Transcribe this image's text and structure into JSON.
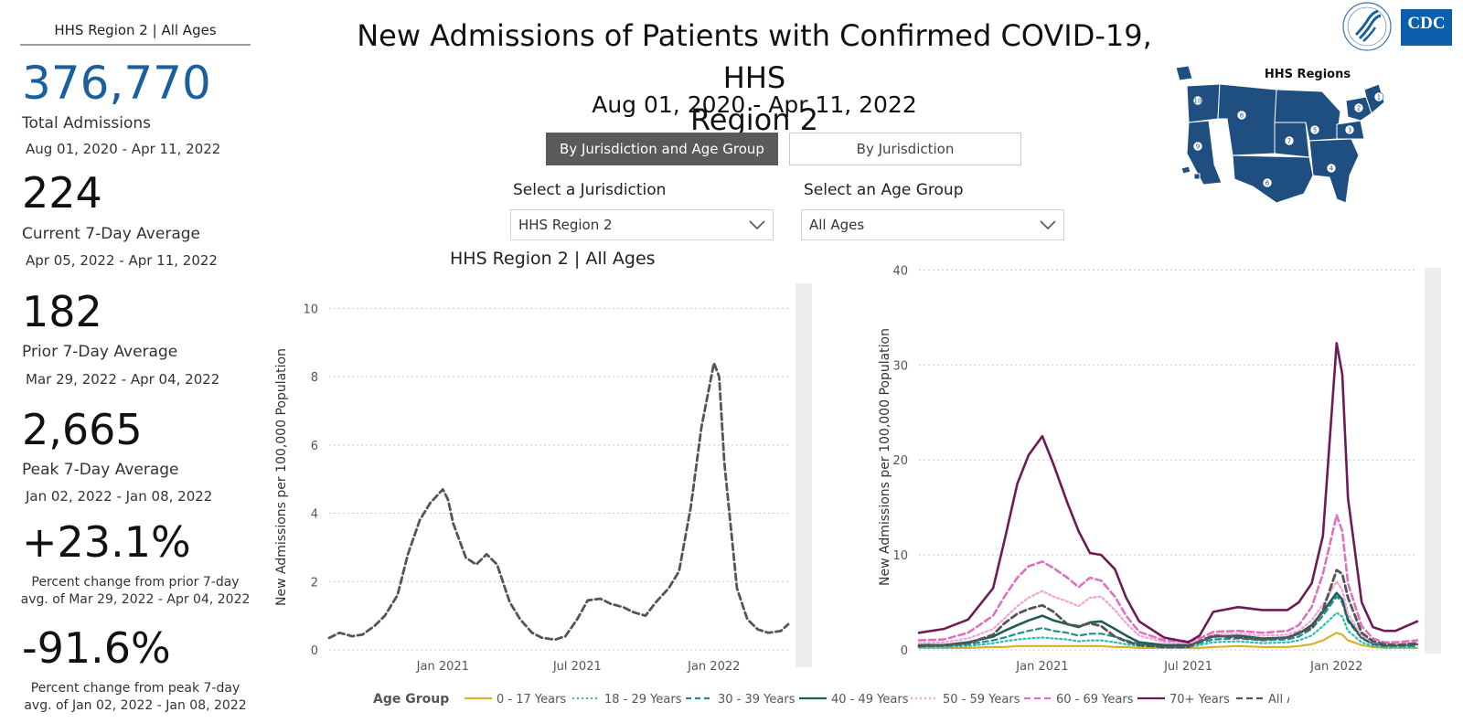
{
  "left_panel": {
    "header": "HHS Region 2 | All Ages",
    "total_admissions": "376,770",
    "total_label": "Total Admissions",
    "total_range": "Aug 01, 2020 - Apr 11, 2022",
    "current_avg": "224",
    "current_label": "Current 7-Day Average",
    "current_range": "Apr 05, 2022 - Apr 11, 2022",
    "prior_avg": "182",
    "prior_label": "Prior 7-Day Average",
    "prior_range": "Mar 29, 2022 - Apr 04, 2022",
    "peak_avg": "2,665",
    "peak_label": "Peak 7-Day Average",
    "peak_range": "Jan 02, 2022 - Jan 08, 2022",
    "pct_change_prior": "+23.1%",
    "pct_change_prior_line1": "Percent change from prior 7-day",
    "pct_change_prior_line2": "avg. of Mar 29, 2022 - Apr 04, 2022",
    "pct_change_peak": "-91.6%",
    "pct_change_peak_line1": "Percent change from peak 7-day",
    "pct_change_peak_line2": "avg. of Jan 02, 2022 - Jan 08, 2022"
  },
  "header": {
    "title_line1": "New Admissions of Patients with Confirmed COVID-19, HHS",
    "title_line2": "Region 2",
    "date_range": "Aug 01, 2020 - Apr 11, 2022"
  },
  "toggle": {
    "by_jurisdiction_age": "By Jurisdiction and Age Group",
    "by_jurisdiction": "By Jurisdiction",
    "active": "By Jurisdiction and Age Group"
  },
  "filters": {
    "jurisdiction_label": "Select a Jurisdiction",
    "jurisdiction_value": "HHS Region 2",
    "age_label": "Select an Age Group",
    "age_value": "All Ages"
  },
  "chart_subtitle": "HHS Region 2 | All Ages",
  "map": {
    "title": "HHS Regions",
    "region_labels": [
      "1",
      "2",
      "3",
      "4",
      "5",
      "6",
      "7",
      "8",
      "9",
      "10"
    ]
  },
  "legend": {
    "title": "Age Group",
    "items": [
      "0 - 17 Years",
      "18 - 29 Years",
      "30 - 39 Years",
      "40 - 49 Years",
      "50 - 59 Years",
      "60 - 69 Years",
      "70+ Years",
      "All Ages"
    ]
  },
  "colors": {
    "brand_blue": "#1a5f9e",
    "cdc_blue": "#0a5eab",
    "map_blue": "#1f4e80",
    "active_button": "#5a5a5a",
    "age_0_17": "#d9b12a",
    "age_18_29": "#2bbfb0",
    "age_30_39": "#1e8f92",
    "age_40_49": "#1f5d57",
    "age_50_59": "#f0a9d7",
    "age_60_69": "#e070c0",
    "age_70_plus": "#6e1a55",
    "all_ages": "#555555"
  },
  "chart_data": [
    {
      "type": "line",
      "title": "",
      "xlabel": "",
      "ylabel": "New Admissions per 100,000 Population",
      "ylim": [
        0,
        11
      ],
      "yticks": [
        0,
        2,
        4,
        6,
        8,
        10
      ],
      "xticks": [
        "Jan 2021",
        "Jul 2021",
        "Jan 2022"
      ],
      "xtick_dates": [
        "2021-01-01",
        "2021-07-01",
        "2022-01-01"
      ],
      "x_range": [
        "2020-08-01",
        "2022-04-11"
      ],
      "series": [
        {
          "name": "All Ages",
          "x": [
            "2020-08-01",
            "2020-08-15",
            "2020-09-01",
            "2020-09-15",
            "2020-10-01",
            "2020-10-15",
            "2020-11-01",
            "2020-11-15",
            "2020-12-01",
            "2020-12-15",
            "2021-01-01",
            "2021-01-08",
            "2021-01-15",
            "2021-02-01",
            "2021-02-15",
            "2021-03-01",
            "2021-03-15",
            "2021-04-01",
            "2021-04-15",
            "2021-05-01",
            "2021-05-15",
            "2021-06-01",
            "2021-06-15",
            "2021-07-01",
            "2021-07-15",
            "2021-08-01",
            "2021-08-15",
            "2021-09-01",
            "2021-09-15",
            "2021-10-01",
            "2021-10-15",
            "2021-11-01",
            "2021-11-15",
            "2021-12-01",
            "2021-12-15",
            "2022-01-01",
            "2022-01-08",
            "2022-01-15",
            "2022-02-01",
            "2022-02-15",
            "2022-03-01",
            "2022-03-15",
            "2022-04-01",
            "2022-04-11"
          ],
          "values": [
            0.35,
            0.5,
            0.4,
            0.45,
            0.7,
            1.0,
            1.6,
            2.8,
            3.8,
            4.3,
            4.7,
            4.4,
            3.7,
            2.7,
            2.5,
            2.8,
            2.5,
            1.4,
            0.9,
            0.5,
            0.35,
            0.3,
            0.4,
            0.9,
            1.45,
            1.5,
            1.35,
            1.25,
            1.1,
            1.0,
            1.4,
            1.8,
            2.3,
            4.2,
            6.5,
            8.4,
            8.0,
            5.5,
            1.8,
            0.9,
            0.6,
            0.5,
            0.55,
            0.75
          ]
        }
      ]
    },
    {
      "type": "line",
      "title": "",
      "xlabel": "",
      "ylabel": "New Admissions per 100,000 Population",
      "ylim": [
        0,
        41
      ],
      "yticks": [
        0,
        10,
        20,
        30,
        40
      ],
      "xticks": [
        "Jan 2021",
        "Jul 2021",
        "Jan 2022"
      ],
      "xtick_dates": [
        "2021-01-01",
        "2021-07-01",
        "2022-01-01"
      ],
      "x_range": [
        "2020-08-01",
        "2022-04-11"
      ],
      "x": [
        "2020-08-01",
        "2020-09-01",
        "2020-10-01",
        "2020-11-01",
        "2020-11-15",
        "2020-12-01",
        "2020-12-15",
        "2021-01-01",
        "2021-01-15",
        "2021-02-01",
        "2021-02-15",
        "2021-03-01",
        "2021-03-15",
        "2021-04-01",
        "2021-04-15",
        "2021-05-01",
        "2021-06-01",
        "2021-07-01",
        "2021-07-15",
        "2021-08-01",
        "2021-09-01",
        "2021-10-01",
        "2021-11-01",
        "2021-11-15",
        "2021-12-01",
        "2021-12-15",
        "2022-01-01",
        "2022-01-08",
        "2022-01-15",
        "2022-02-01",
        "2022-02-15",
        "2022-03-01",
        "2022-03-15",
        "2022-04-11"
      ],
      "series": [
        {
          "name": "0 - 17 Years",
          "values": [
            0.2,
            0.2,
            0.2,
            0.3,
            0.3,
            0.4,
            0.4,
            0.4,
            0.4,
            0.4,
            0.4,
            0.4,
            0.4,
            0.3,
            0.3,
            0.2,
            0.2,
            0.2,
            0.2,
            0.3,
            0.4,
            0.3,
            0.3,
            0.4,
            0.6,
            1.0,
            1.8,
            1.6,
            1.0,
            0.5,
            0.3,
            0.2,
            0.2,
            0.2
          ]
        },
        {
          "name": "18 - 29 Years",
          "values": [
            0.3,
            0.3,
            0.4,
            0.7,
            0.9,
            1.1,
            1.2,
            1.3,
            1.2,
            1.1,
            0.9,
            1.0,
            1.0,
            0.8,
            0.6,
            0.4,
            0.3,
            0.3,
            0.5,
            0.8,
            0.9,
            0.7,
            0.8,
            1.0,
            1.5,
            2.5,
            3.9,
            3.5,
            2.0,
            0.8,
            0.4,
            0.3,
            0.3,
            0.3
          ]
        },
        {
          "name": "30 - 39 Years",
          "values": [
            0.4,
            0.4,
            0.6,
            1.0,
            1.3,
            1.7,
            2.0,
            2.3,
            2.0,
            1.8,
            1.5,
            1.7,
            1.7,
            1.4,
            1.0,
            0.6,
            0.4,
            0.4,
            0.7,
            1.1,
            1.2,
            1.0,
            1.1,
            1.4,
            2.2,
            3.6,
            5.6,
            5.0,
            3.0,
            1.2,
            0.6,
            0.4,
            0.4,
            0.4
          ]
        },
        {
          "name": "40 - 49 Years",
          "values": [
            0.5,
            0.5,
            0.8,
            1.4,
            2.0,
            2.6,
            3.1,
            3.6,
            3.1,
            2.7,
            2.4,
            2.9,
            3.0,
            2.2,
            1.5,
            0.8,
            0.5,
            0.5,
            0.9,
            1.4,
            1.5,
            1.2,
            1.3,
            1.7,
            2.6,
            4.0,
            6.0,
            5.3,
            3.2,
            1.3,
            0.7,
            0.5,
            0.5,
            0.6
          ]
        },
        {
          "name": "50 - 59 Years",
          "values": [
            0.7,
            0.8,
            1.2,
            2.2,
            3.3,
            4.6,
            5.5,
            6.2,
            5.6,
            5.1,
            4.6,
            5.5,
            5.6,
            4.2,
            2.8,
            1.5,
            0.8,
            0.7,
            1.0,
            1.6,
            1.7,
            1.5,
            1.6,
            2.0,
            3.1,
            4.8,
            7.2,
            6.3,
            3.8,
            1.5,
            0.8,
            0.6,
            0.6,
            0.7
          ]
        },
        {
          "name": "60 - 69 Years",
          "values": [
            1.0,
            1.1,
            1.8,
            3.6,
            5.6,
            7.6,
            8.8,
            9.3,
            8.6,
            7.6,
            6.6,
            7.6,
            7.3,
            5.6,
            3.6,
            1.9,
            1.0,
            0.9,
            1.2,
            1.9,
            2.0,
            1.8,
            2.0,
            2.6,
            4.5,
            8.0,
            14.2,
            12.5,
            7.0,
            2.5,
            1.2,
            0.8,
            0.8,
            1.0
          ]
        },
        {
          "name": "70+ Years",
          "values": [
            1.8,
            2.2,
            3.2,
            6.5,
            11.5,
            17.5,
            20.5,
            22.5,
            19.5,
            15.5,
            12.5,
            10.2,
            10.0,
            8.5,
            5.5,
            3.0,
            1.3,
            0.8,
            1.5,
            4.0,
            4.5,
            4.2,
            4.2,
            5.0,
            7.0,
            12.0,
            32.3,
            29.0,
            16.0,
            5.0,
            2.4,
            2.0,
            2.0,
            3.0
          ]
        },
        {
          "name": "All Ages",
          "values": [
            0.4,
            0.5,
            0.7,
            1.6,
            2.8,
            3.8,
            4.3,
            4.7,
            4.0,
            2.7,
            2.5,
            2.8,
            2.5,
            1.4,
            0.9,
            0.5,
            0.3,
            0.3,
            0.9,
            1.5,
            1.3,
            1.1,
            1.3,
            1.8,
            2.3,
            4.2,
            8.4,
            8.0,
            5.5,
            1.8,
            0.9,
            0.6,
            0.5,
            0.7
          ]
        }
      ]
    }
  ]
}
